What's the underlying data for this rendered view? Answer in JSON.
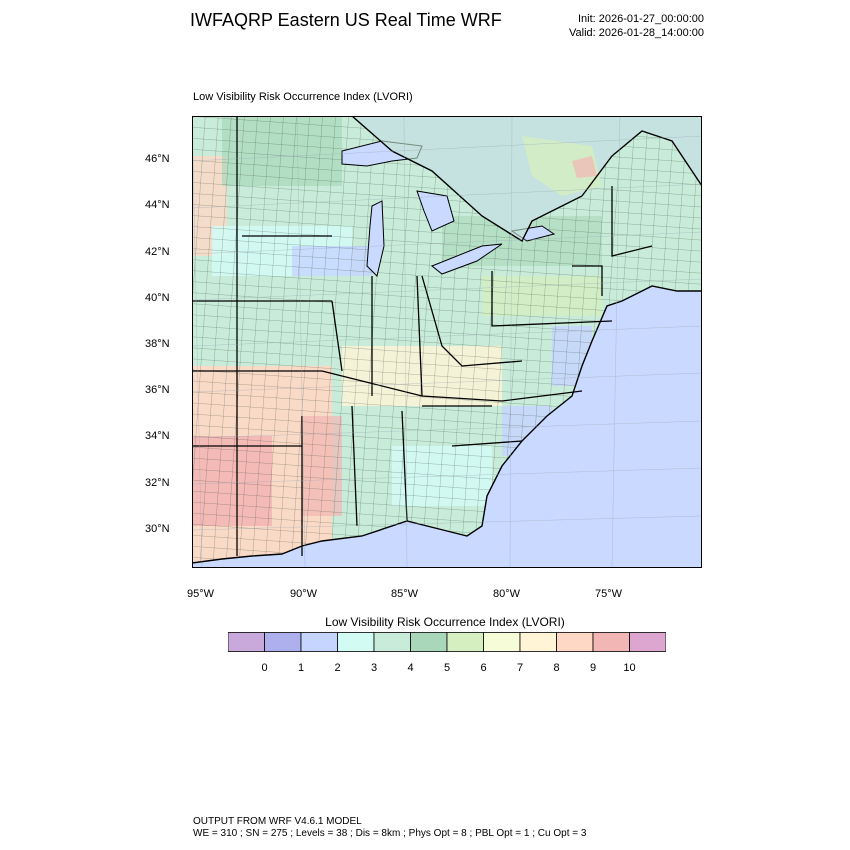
{
  "header": {
    "title": "IWFAQRP Eastern US Real Time WRF",
    "init": "Init: 2026-01-27_00:00:00",
    "valid": "Valid: 2026-01-28_14:00:00"
  },
  "map": {
    "field_title": "Low Visibility Risk Occurrence Index   (LVORI)",
    "lat_labels": [
      "46°N",
      "44°N",
      "42°N",
      "40°N",
      "38°N",
      "36°N",
      "34°N",
      "32°N",
      "30°N"
    ],
    "lon_labels": [
      "95°W",
      "90°W",
      "85°W",
      "80°W",
      "75°W"
    ],
    "colors": {
      "land_base": "#c8ecd9",
      "ocean": "#c9d9ff",
      "lake": "#c9d9ff",
      "canada": "#c3e6cc",
      "border": "#000000"
    }
  },
  "colorbar": {
    "title": "Low Visibility Risk Occurrence Index  (LVORI)",
    "colors": [
      "#c9a8dc",
      "#adb0ec",
      "#c5d5ff",
      "#d2fbf4",
      "#c8ecd9",
      "#a8d8b9",
      "#d5efc0",
      "#f6fcd8",
      "#fff4d6",
      "#fed8c4",
      "#f2b6b4",
      "#dda6d0"
    ],
    "labels": [
      "0",
      "1",
      "2",
      "3",
      "4",
      "5",
      "6",
      "7",
      "8",
      "9",
      "10"
    ]
  },
  "footer": {
    "line1": "OUTPUT FROM WRF V4.6.1 MODEL",
    "line2": "WE = 310 ; SN = 275 ; Levels = 38 ; Dis = 8km ; Phys Opt = 8 ; PBL Opt = 1 ; Cu Opt = 3"
  }
}
